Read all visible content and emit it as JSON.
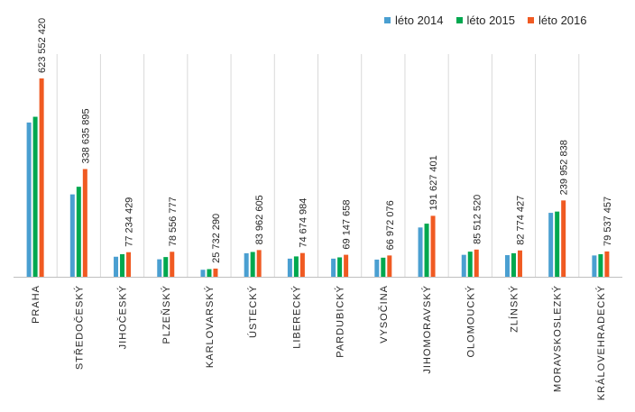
{
  "chart_data": {
    "type": "bar",
    "title": "",
    "xlabel": "",
    "ylabel": "",
    "categories": [
      "PRAHA",
      "STŘEDOČESKÝ",
      "JIHOČESKÝ",
      "PLZEŇSKÝ",
      "KARLOVARSKÝ",
      "ÚSTECKÝ",
      "LIBERECKÝ",
      "PARDUBICKÝ",
      "VYSOČINA",
      "JIHOMORAVSKÝ",
      "OLOMOUCKÝ",
      "ZLÍNSKÝ",
      "MORAVSKOSLEZKÝ",
      "KRÁLOVEHRADECKÝ"
    ],
    "series": [
      {
        "name": "léto 2014",
        "color": "#4a9fd1",
        "values": [
          485000000,
          259000000,
          63000000,
          55000000,
          22000000,
          74000000,
          57000000,
          57000000,
          54000000,
          155000000,
          69000000,
          68000000,
          201000000,
          67000000
        ]
      },
      {
        "name": "léto 2015",
        "color": "#00a84f",
        "values": [
          503000000,
          283000000,
          71000000,
          62000000,
          24000000,
          78000000,
          64000000,
          61000000,
          60000000,
          167000000,
          79000000,
          74000000,
          205000000,
          71000000
        ]
      },
      {
        "name": "léto 2016",
        "color": "#f05a22",
        "values": [
          623552420,
          338635895,
          77234429,
          78556777,
          25732290,
          83962605,
          74674984,
          69147658,
          66972076,
          191627401,
          85512520,
          82774427,
          239952838,
          79537457
        ]
      }
    ],
    "data_labels": [
      "623 552 420",
      "338 635 895",
      "77 234 429",
      "78 556 777",
      "25 732 290",
      "83 962 605",
      "74 674 984",
      "69 147 658",
      "66 972 076",
      "191 627 401",
      "85 512 520",
      "82 774 427",
      "239 952 838",
      "79 537 457"
    ],
    "ylim": [
      0,
      700000000
    ],
    "legend_position": "top-right",
    "grid": false
  }
}
